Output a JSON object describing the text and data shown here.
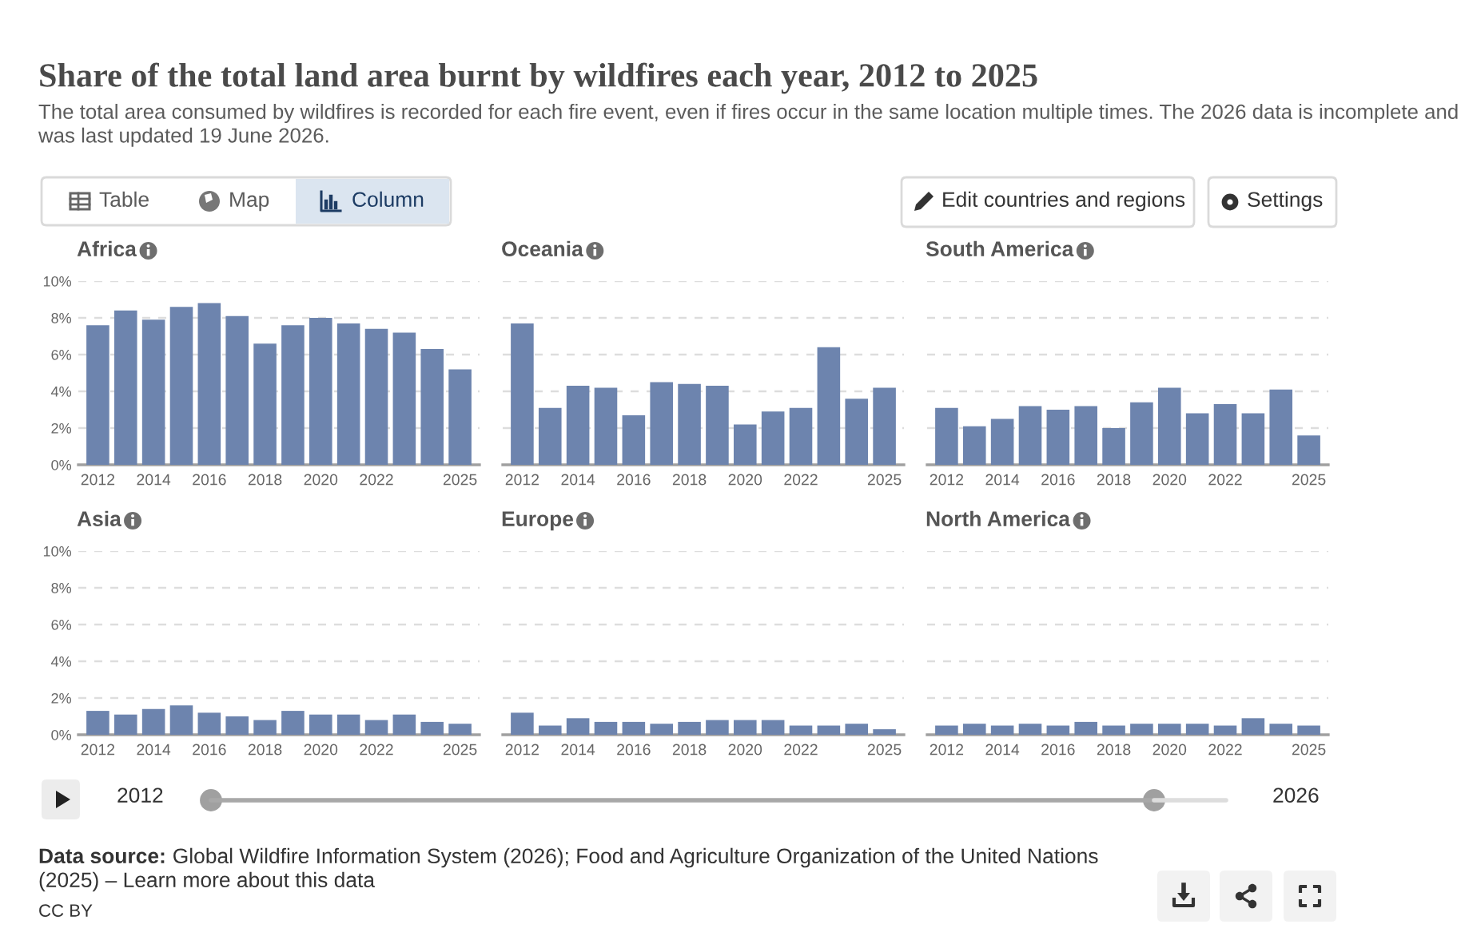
{
  "chart_data": [
    {
      "type": "other",
      "title": "Share of the total land area burnt by wildfires each year, 2012 to 2025",
      "subtitle": "The total area consumed by wildfires is recorded for each fire event, even if fires occur in the same location multiple times. The 2026 data is incomplete and was last updated 19 June 2026.",
      "annotations": [
        "Table",
        "Map",
        "Column",
        "Edit countries and regions",
        "Settings",
        "2012",
        "2026",
        "Data source:",
        "Global Wildfire Information System (2026); Food and Agriculture Organization of the United Nations",
        "(2025) – Learn more about this data",
        "CC BY"
      ]
    },
    {
      "type": "bar",
      "title": "Africa",
      "categories": [
        "2012",
        null,
        "2014",
        null,
        "2016",
        null,
        "2018",
        null,
        "2020",
        null,
        "2022",
        null,
        null,
        "2025"
      ],
      "values": [
        7.6,
        8.4,
        7.9,
        8.6,
        8.8,
        8.1,
        6.6,
        7.6,
        8.0,
        7.7,
        7.4,
        7.2,
        6.3,
        5.2
      ],
      "color": "#6d84ae",
      "ylim": [
        0,
        10
      ],
      "yticks": [
        {
          "value": 0,
          "label": "0%"
        },
        {
          "value": 2,
          "label": "2%"
        },
        {
          "value": 4,
          "label": "4%"
        },
        {
          "value": 6,
          "label": "6%"
        },
        {
          "value": 8,
          "label": "8%"
        },
        {
          "value": 10,
          "label": "10%"
        }
      ],
      "grid": "y"
    },
    {
      "type": "bar",
      "title": "Oceania",
      "categories": [
        "2012",
        null,
        "2014",
        null,
        "2016",
        null,
        "2018",
        null,
        "2020",
        null,
        "2022",
        null,
        null,
        "2025"
      ],
      "values": [
        7.7,
        3.1,
        4.3,
        4.2,
        2.7,
        4.5,
        4.4,
        4.3,
        2.2,
        2.9,
        3.1,
        6.4,
        3.6,
        4.2
      ],
      "color": "#6d84ae",
      "ylim": [
        0,
        10
      ],
      "yticks": [
        {
          "value": 0,
          "label": null
        },
        {
          "value": 2,
          "label": null
        },
        {
          "value": 4,
          "label": null
        },
        {
          "value": 6,
          "label": null
        },
        {
          "value": 8,
          "label": null
        },
        {
          "value": 10,
          "label": null
        }
      ],
      "grid": "y",
      "tick_labels": "x"
    },
    {
      "type": "bar",
      "title": "South America",
      "categories": [
        "2012",
        null,
        "2014",
        null,
        "2016",
        null,
        "2018",
        null,
        "2020",
        null,
        "2022",
        null,
        null,
        "2025"
      ],
      "values": [
        3.1,
        2.1,
        2.5,
        3.2,
        3.0,
        3.2,
        2.0,
        3.4,
        4.2,
        2.8,
        3.3,
        2.8,
        4.1,
        1.6
      ],
      "color": "#6d84ae",
      "ylim": [
        0,
        10
      ],
      "yticks": [
        {
          "value": 0,
          "label": null
        },
        {
          "value": 2,
          "label": null
        },
        {
          "value": 4,
          "label": null
        },
        {
          "value": 6,
          "label": null
        },
        {
          "value": 8,
          "label": null
        },
        {
          "value": 10,
          "label": null
        }
      ],
      "grid": "y",
      "tick_labels": "x"
    },
    {
      "type": "bar",
      "title": "Asia",
      "categories": [
        "2012",
        null,
        "2014",
        null,
        "2016",
        null,
        "2018",
        null,
        "2020",
        null,
        "2022",
        null,
        null,
        "2025"
      ],
      "values": [
        1.3,
        1.1,
        1.4,
        1.6,
        1.2,
        1.0,
        0.8,
        1.3,
        1.1,
        1.1,
        0.8,
        1.1,
        0.7,
        0.6
      ],
      "color": "#6d84ae",
      "ylim": [
        0,
        10
      ],
      "yticks": [
        {
          "value": 0,
          "label": "0%"
        },
        {
          "value": 2,
          "label": "2%"
        },
        {
          "value": 4,
          "label": "4%"
        },
        {
          "value": 6,
          "label": "6%"
        },
        {
          "value": 8,
          "label": "8%"
        },
        {
          "value": 10,
          "label": "10%"
        }
      ],
      "grid": "y"
    },
    {
      "type": "bar",
      "title": "Europe",
      "categories": [
        "2012",
        null,
        "2014",
        null,
        "2016",
        null,
        "2018",
        null,
        "2020",
        null,
        "2022",
        null,
        null,
        "2025"
      ],
      "values": [
        1.2,
        0.5,
        0.9,
        0.7,
        0.7,
        0.6,
        0.7,
        0.8,
        0.8,
        0.8,
        0.5,
        0.5,
        0.6,
        0.3
      ],
      "color": "#6d84ae",
      "ylim": [
        0,
        10
      ],
      "yticks": [
        {
          "value": 0,
          "label": null
        },
        {
          "value": 2,
          "label": null
        },
        {
          "value": 4,
          "label": null
        },
        {
          "value": 6,
          "label": null
        },
        {
          "value": 8,
          "label": null
        },
        {
          "value": 10,
          "label": null
        }
      ],
      "grid": "y",
      "tick_labels": "x"
    },
    {
      "type": "bar",
      "title": "North America",
      "categories": [
        "2012",
        null,
        "2014",
        null,
        "2016",
        null,
        "2018",
        null,
        "2020",
        null,
        "2022",
        null,
        null,
        "2025"
      ],
      "values": [
        0.5,
        0.6,
        0.5,
        0.6,
        0.5,
        0.7,
        0.5,
        0.6,
        0.6,
        0.6,
        0.5,
        0.9,
        0.6,
        0.5
      ],
      "color": "#6d84ae",
      "ylim": [
        0,
        10
      ],
      "yticks": [
        {
          "value": 0,
          "label": null
        },
        {
          "value": 2,
          "label": null
        },
        {
          "value": 4,
          "label": null
        },
        {
          "value": 6,
          "label": null
        },
        {
          "value": 8,
          "label": null
        },
        {
          "value": 10,
          "label": null
        }
      ],
      "grid": "y",
      "tick_labels": "x"
    }
  ]
}
